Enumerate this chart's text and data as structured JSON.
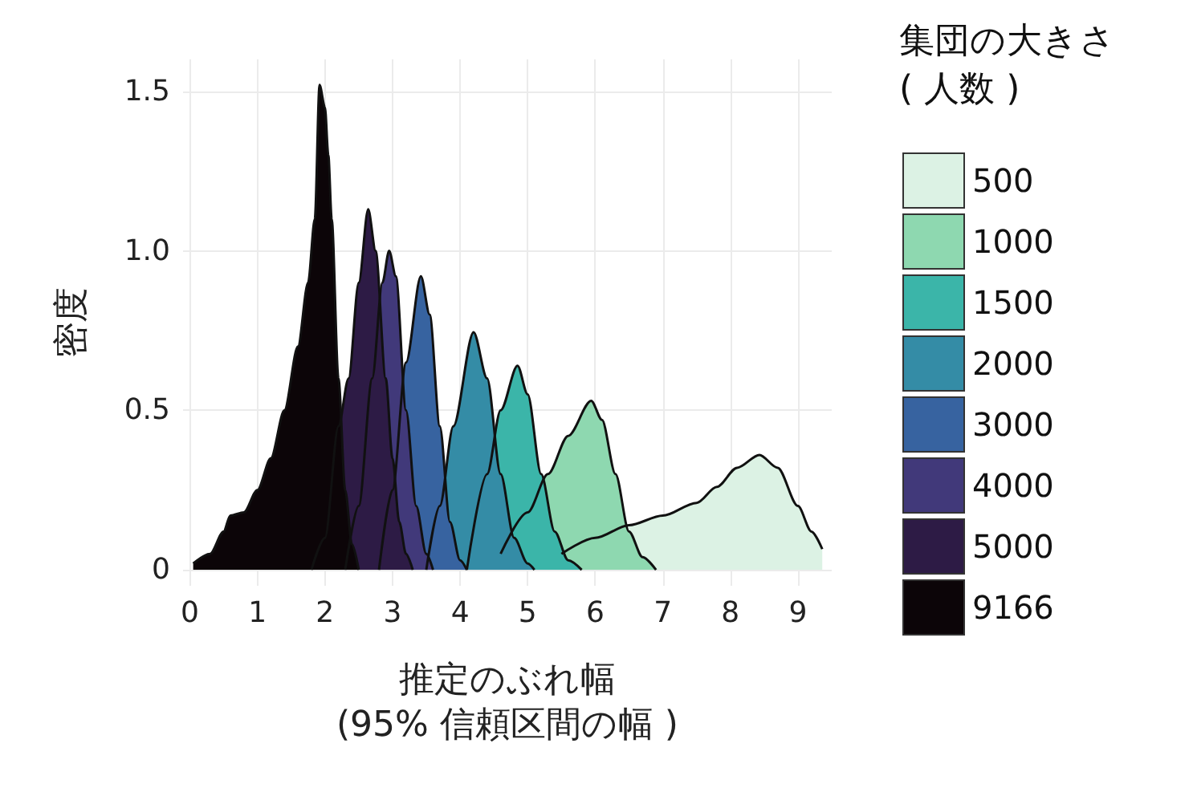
{
  "chart_data": {
    "type": "area",
    "xlabel": "推定のぶれ幅\n(95% 信頼区間の幅 )",
    "ylabel": "密度",
    "legend_title": "集団の大きさ\n( 人数 )",
    "legend": "right",
    "grid": true,
    "xlim": [
      -0.1,
      9.5
    ],
    "xticks": [
      0,
      1,
      2,
      3,
      4,
      5,
      6,
      7,
      8,
      9
    ],
    "ylim": [
      -0.05,
      1.6
    ],
    "yticks": [
      0,
      0.5,
      {
        "value": 1,
        "label": "1.0"
      },
      1.5
    ],
    "series": [
      {
        "name": "500",
        "color": "#dcf2e4",
        "x": [
          5.5,
          6.0,
          6.5,
          7.0,
          7.5,
          7.8,
          8.1,
          8.43,
          8.7,
          9.0,
          9.2,
          9.36
        ],
        "values": [
          0.05,
          0.1,
          0.14,
          0.17,
          0.21,
          0.26,
          0.32,
          0.36,
          0.32,
          0.2,
          0.12,
          0.065
        ]
      },
      {
        "name": "1000",
        "color": "#8ed8b0",
        "x": [
          4.6,
          5.0,
          5.3,
          5.6,
          5.94,
          6.1,
          6.3,
          6.5,
          6.7,
          6.9
        ],
        "values": [
          0.05,
          0.18,
          0.3,
          0.42,
          0.53,
          0.47,
          0.3,
          0.12,
          0.04,
          0
        ]
      },
      {
        "name": "1500",
        "color": "#3bb5a9",
        "x": [
          4.1,
          4.4,
          4.6,
          4.85,
          5.0,
          5.2,
          5.4,
          5.6,
          5.8
        ],
        "values": [
          0,
          0.3,
          0.5,
          0.64,
          0.55,
          0.3,
          0.12,
          0.03,
          0
        ]
      },
      {
        "name": "2000",
        "color": "#348ca6",
        "x": [
          3.5,
          3.7,
          3.9,
          4.2,
          4.4,
          4.6,
          4.8,
          5.0,
          5.1
        ],
        "values": [
          0,
          0.2,
          0.45,
          0.745,
          0.6,
          0.3,
          0.1,
          0.02,
          0
        ]
      },
      {
        "name": "3000",
        "color": "#3763a0",
        "x": [
          2.8,
          3.0,
          3.2,
          3.42,
          3.55,
          3.7,
          3.85,
          4.0,
          4.1
        ],
        "values": [
          0,
          0.25,
          0.65,
          0.92,
          0.8,
          0.45,
          0.15,
          0.03,
          0
        ]
      },
      {
        "name": "4000",
        "color": "#41397a",
        "x": [
          2.3,
          2.5,
          2.7,
          2.85,
          2.95,
          3.05,
          3.2,
          3.35,
          3.5,
          3.6
        ],
        "values": [
          0,
          0.2,
          0.6,
          0.9,
          1.0,
          0.92,
          0.5,
          0.2,
          0.05,
          0
        ]
      },
      {
        "name": "5000",
        "color": "#2d1b45",
        "x": [
          1.8,
          2.0,
          2.2,
          2.35,
          2.5,
          2.64,
          2.75,
          2.9,
          3.0,
          3.1,
          3.2,
          3.3
        ],
        "values": [
          0,
          0.1,
          0.45,
          0.6,
          0.9,
          1.13,
          1.0,
          0.6,
          0.35,
          0.15,
          0.05,
          0
        ]
      },
      {
        "name": "9166",
        "color": "#0c0508",
        "x": [
          0.05,
          0.3,
          0.5,
          0.6,
          0.8,
          1.0,
          1.2,
          1.4,
          1.6,
          1.75,
          1.85,
          1.92,
          2.0,
          2.05,
          2.1,
          2.2,
          2.3,
          2.4,
          2.5
        ],
        "values": [
          0.02,
          0.05,
          0.12,
          0.17,
          0.18,
          0.25,
          0.35,
          0.5,
          0.7,
          0.9,
          1.1,
          1.52,
          1.45,
          1.3,
          1.1,
          0.6,
          0.25,
          0.08,
          0
        ]
      }
    ]
  }
}
